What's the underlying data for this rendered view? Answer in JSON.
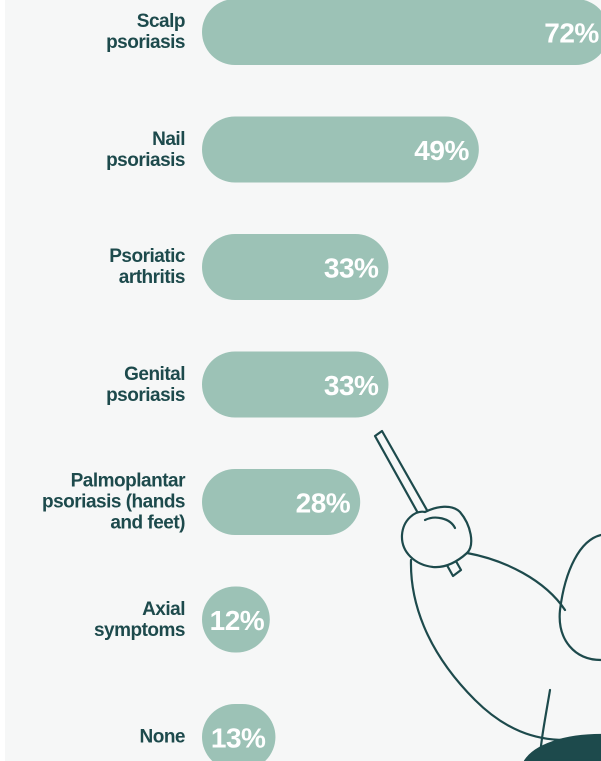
{
  "chart_data": {
    "type": "bar",
    "orientation": "horizontal",
    "categories": [
      "Scalp\npsoriasis",
      "Nail\npsoriasis",
      "Psoriatic\narthritis",
      "Genital\npsoriasis",
      "Palmoplantar\npsoriasis (hands\nand feet)",
      "Axial\nsymptoms",
      "None"
    ],
    "values": [
      72,
      49,
      33,
      33,
      28,
      12,
      13
    ],
    "value_labels": [
      "72%",
      "49%",
      "33%",
      "33%",
      "28%",
      "12%",
      "13%"
    ],
    "color": "#9cc2b6"
  }
}
